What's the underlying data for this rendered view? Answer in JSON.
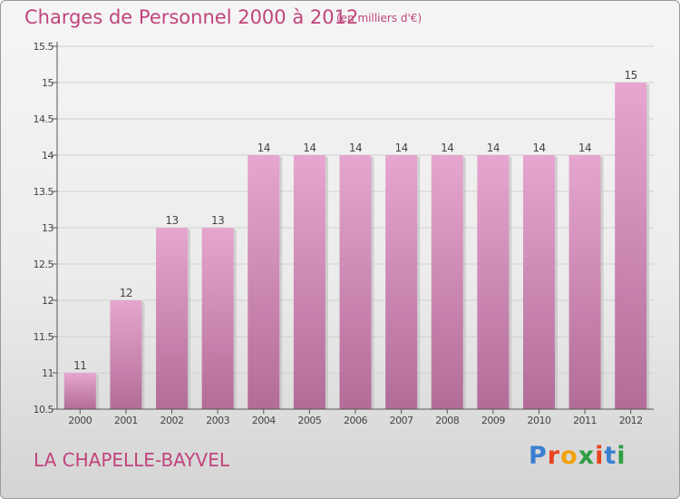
{
  "header": {
    "title": "Charges de Personnel 2000 à 2012",
    "subtitle": "(en milliers d'€)"
  },
  "footer": {
    "place": "LA CHAPELLE-BAYVEL",
    "logo": "Proxiti",
    "logo_colors": [
      "#3a7fd0",
      "#e8431d",
      "#f2a20c",
      "#2e9e44",
      "#e8431d",
      "#3a7fd0",
      "#2e9e44"
    ]
  },
  "colors": {
    "title": "#c0447c",
    "bar_top": "#e6a6cf",
    "bar_bottom": "#b26c98",
    "grid": "#d0d0d0",
    "axis": "#555555"
  },
  "chart_data": {
    "type": "bar",
    "title": "Charges de Personnel 2000 à 2012",
    "subtitle": "(en milliers d'€)",
    "categories": [
      "2000",
      "2001",
      "2002",
      "2003",
      "2004",
      "2005",
      "2006",
      "2007",
      "2008",
      "2009",
      "2010",
      "2011",
      "2012"
    ],
    "values": [
      11,
      12,
      13,
      13,
      14,
      14,
      14,
      14,
      14,
      14,
      14,
      14,
      15
    ],
    "data_labels": [
      "11",
      "12",
      "13",
      "13",
      "14",
      "14",
      "14",
      "14",
      "14",
      "14",
      "14",
      "14",
      "15"
    ],
    "yticks": [
      10.5,
      11,
      11.5,
      12,
      12.5,
      13,
      13.5,
      14,
      14.5,
      15,
      15.5
    ],
    "ytick_labels": [
      "10.5",
      "11",
      "11.5",
      "12",
      "12.5",
      "13",
      "13.5",
      "14",
      "14.5",
      "15",
      "15.5"
    ],
    "ylim": [
      10.5,
      15.5
    ],
    "xlabel": "",
    "ylabel": "",
    "grid": true,
    "legend": "none"
  }
}
